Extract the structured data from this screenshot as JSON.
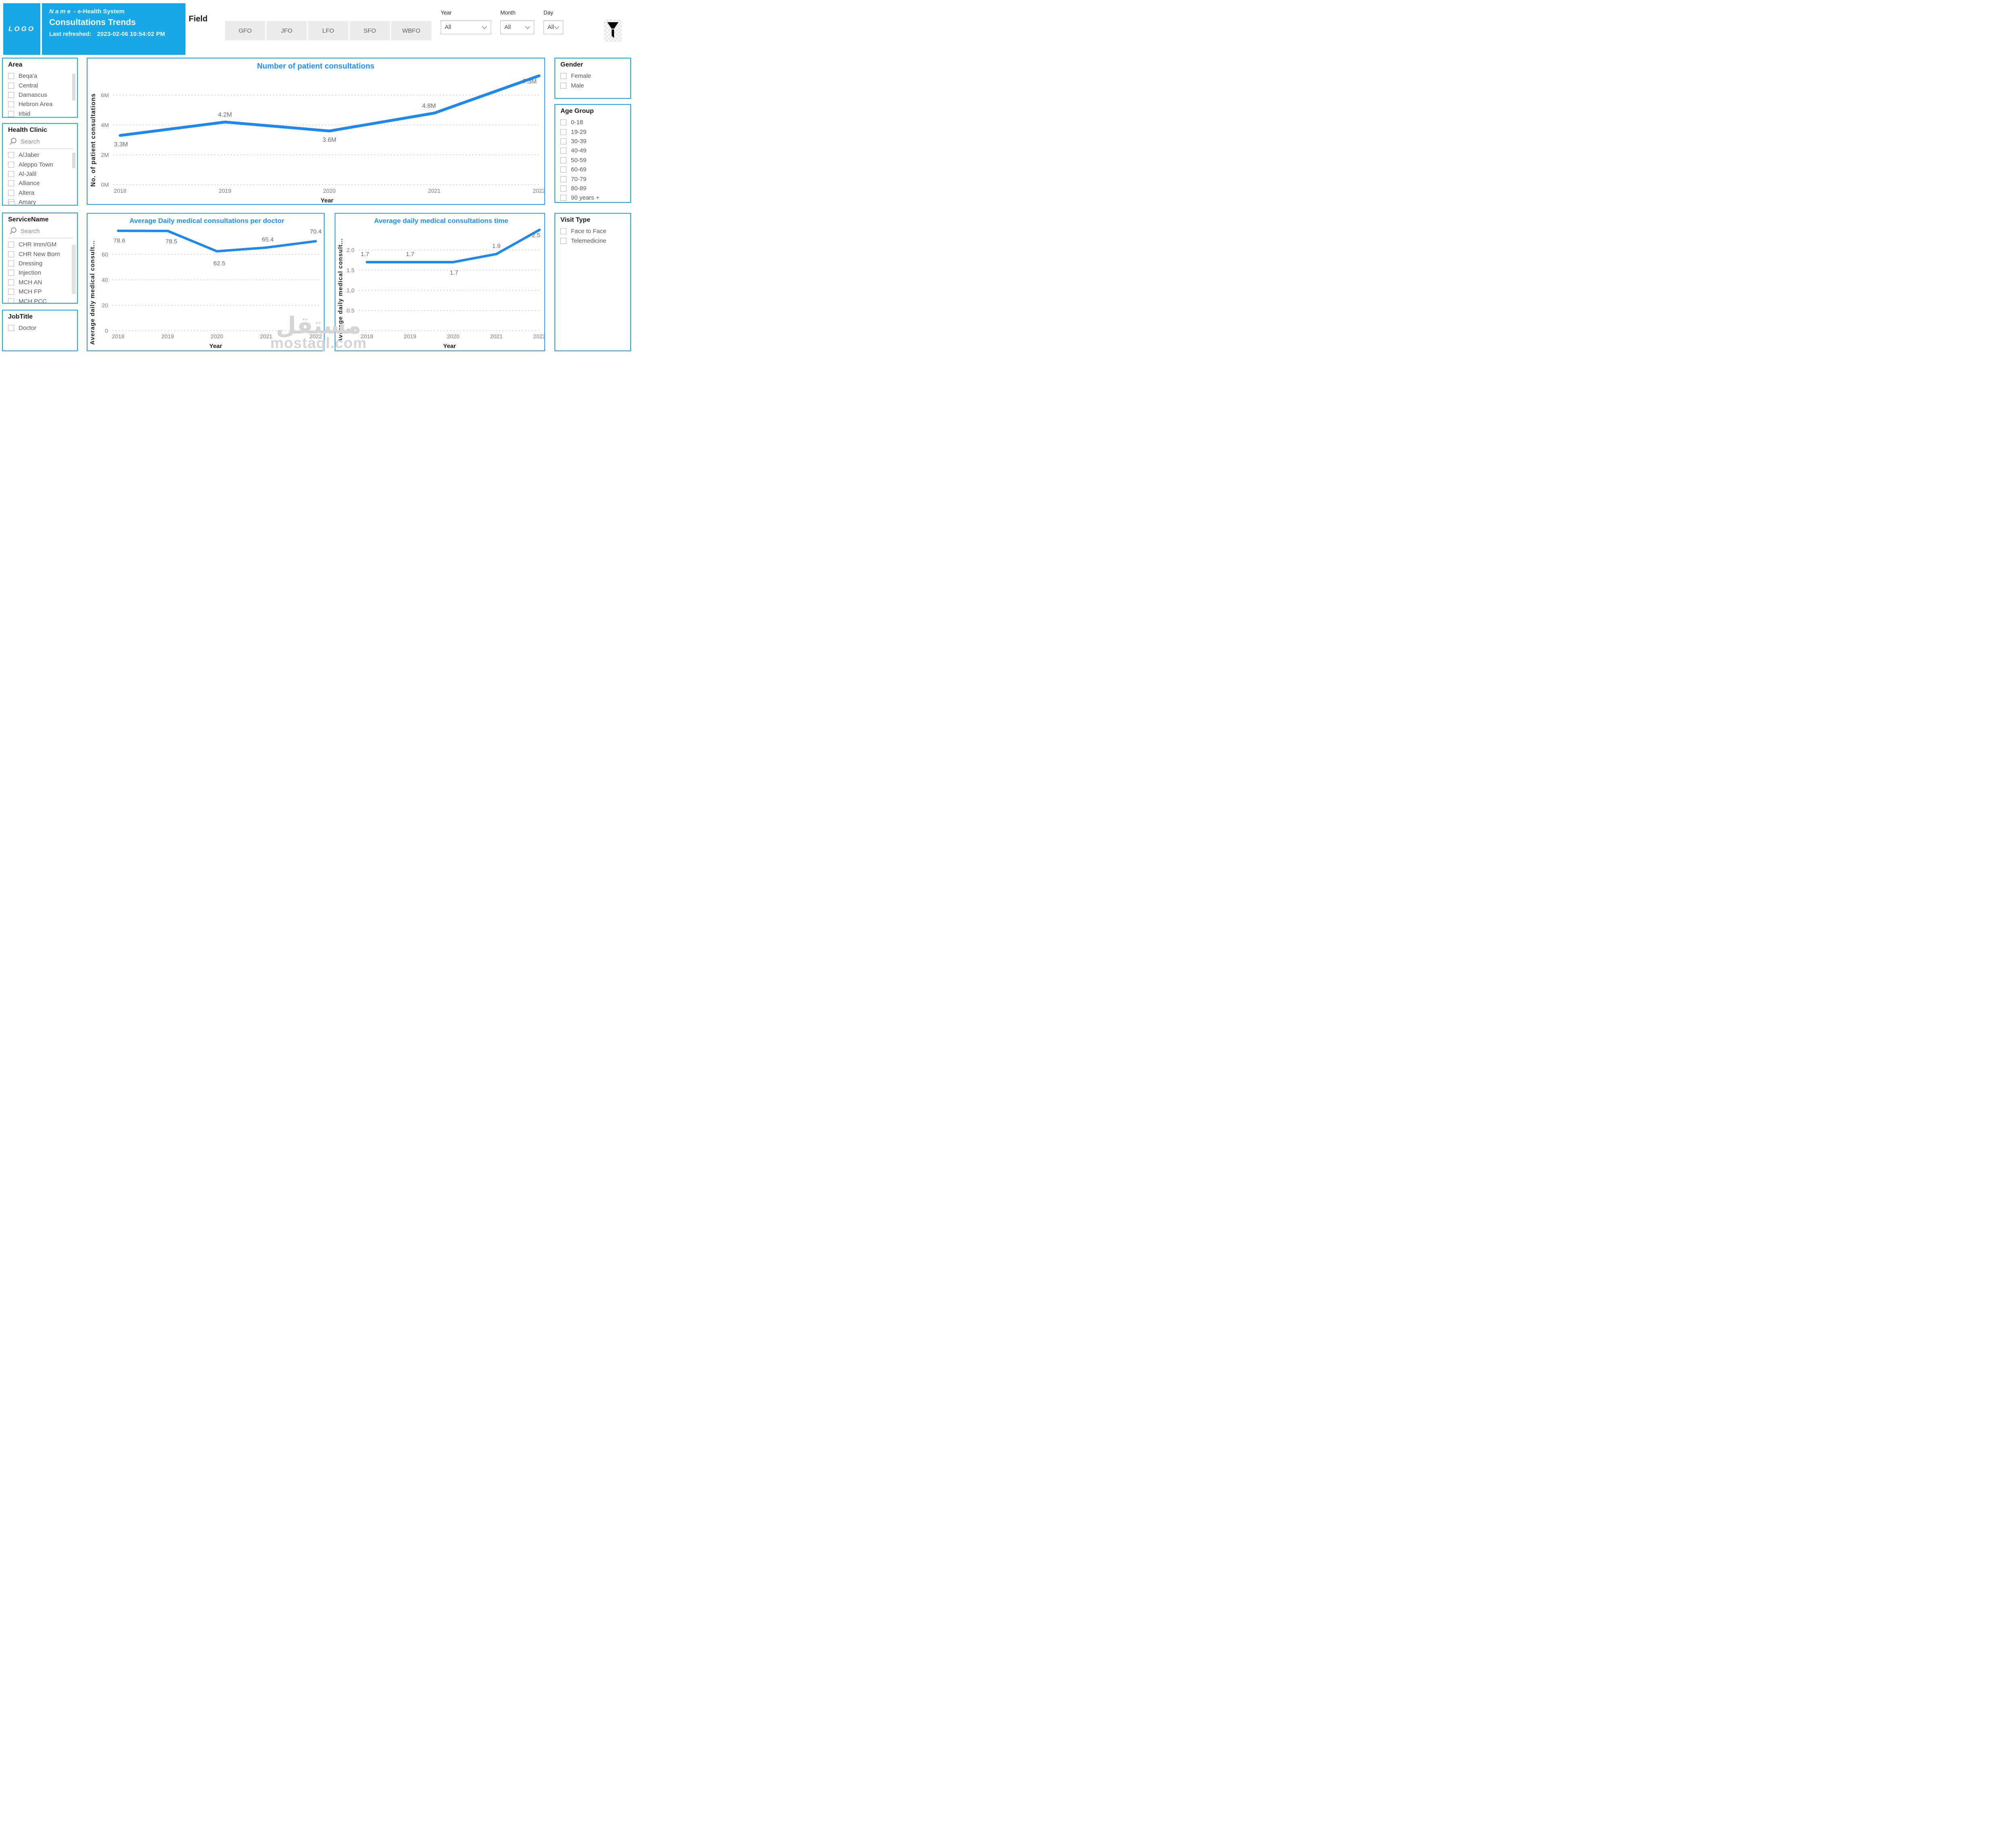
{
  "header": {
    "logo": "LOGO",
    "name_prefix": "Name",
    "name_rest": " - e-Health System",
    "title": "Consultations Trends",
    "last_refreshed_label": "Last refreshed:",
    "last_refreshed_value": "2023-02-06 10:54:02 PM",
    "field_label": "Field",
    "field_buttons": [
      "GFO",
      "JFO",
      "LFO",
      "SFO",
      "WBFO"
    ],
    "date_filters": [
      {
        "label": "Year",
        "value": "All"
      },
      {
        "label": "Month",
        "value": "All"
      },
      {
        "label": "Day",
        "value": "All"
      }
    ]
  },
  "filters": {
    "area": {
      "title": "Area",
      "items": [
        "Beqa'a",
        "Central",
        "Damascus",
        "Hebron Area",
        "Irbid"
      ]
    },
    "health_clinic": {
      "title": "Health Clinic",
      "search_placeholder": "Search",
      "items": [
        "A/Jaber",
        "Aleppo Town",
        "Al-Jalil",
        "Alliance",
        "Altera",
        "Amary"
      ]
    },
    "service_name": {
      "title": "ServiceName",
      "search_placeholder": "Search",
      "items": [
        "CHR Imm/GM",
        "CHR New Born",
        "Dressing",
        "Injection",
        "MCH AN",
        "MCH FP",
        "MCH PCC"
      ]
    },
    "job_title": {
      "title": "JobTitle",
      "items": [
        "Doctor"
      ]
    },
    "gender": {
      "title": "Gender",
      "items": [
        "Female",
        "Male"
      ]
    },
    "age_group": {
      "title": "Age Group",
      "items": [
        "0-18",
        "19-29",
        "30-39",
        "40-49",
        "50-59",
        "60-69",
        "70-79",
        "80-89",
        "90 years +"
      ]
    },
    "visit_type": {
      "title": "Visit Type",
      "items": [
        "Face to Face",
        "Telemedicine"
      ]
    }
  },
  "chart_data": [
    {
      "type": "line",
      "title": "Number of patient consultations",
      "x": [
        "2018",
        "2019",
        "2020",
        "2021",
        "2022"
      ],
      "values": [
        3300000,
        4200000,
        3600000,
        4800000,
        7300000
      ],
      "point_labels": [
        "3.3M",
        "4.2M",
        "3.6M",
        "4.8M",
        "7.3M"
      ],
      "xlabel": "Year",
      "ylabel": "No. of patient consultations",
      "ytick_values": [
        0,
        2000000,
        4000000,
        6000000
      ],
      "ytick_labels": [
        "0M",
        "2M",
        "4M",
        "6M"
      ],
      "ylim": [
        0,
        8000000
      ],
      "grid": "dotted horizontal",
      "legend": "none"
    },
    {
      "type": "line",
      "title": "Average Daily medical consultations per doctor",
      "x": [
        "2018",
        "2019",
        "2020",
        "2021",
        "2022"
      ],
      "values": [
        78.6,
        78.5,
        62.5,
        65.4,
        70.4
      ],
      "point_labels": [
        "78.6",
        "78.5",
        "62.5",
        "65.4",
        "70.4"
      ],
      "xlabel": "Year",
      "ylabel": "Average daily medical consult...",
      "ytick_values": [
        0,
        20,
        40,
        60
      ],
      "ytick_labels": [
        "0",
        "20",
        "40",
        "60"
      ],
      "ylim": [
        0,
        90
      ],
      "grid": "dotted horizontal",
      "legend": "none"
    },
    {
      "type": "line",
      "title": "Average daily medical consultations time",
      "x": [
        "2018",
        "2019",
        "2020",
        "2021",
        "2022"
      ],
      "values": [
        1.7,
        1.7,
        1.7,
        1.9,
        2.5
      ],
      "point_labels": [
        "1.7",
        "1.7",
        "1.7",
        "1.9",
        "2.5"
      ],
      "xlabel": "Year",
      "ylabel": "Average daily medical consult...",
      "ytick_values": [
        0.0,
        0.5,
        1.0,
        1.5,
        2.0
      ],
      "ytick_labels": [
        "0.0",
        "0.5",
        "1.0",
        "1.5",
        "2.0"
      ],
      "ylim": [
        0,
        2.9
      ],
      "grid": "dotted horizontal",
      "legend": "none"
    }
  ],
  "watermark": {
    "line1": "مستقل",
    "line2": "mostaql.com"
  },
  "colors": {
    "accent": "#18A8E8",
    "chart_border": "#2F9BF1",
    "chart_line": "#1E88F0",
    "chart_title": "#1E90FF"
  }
}
